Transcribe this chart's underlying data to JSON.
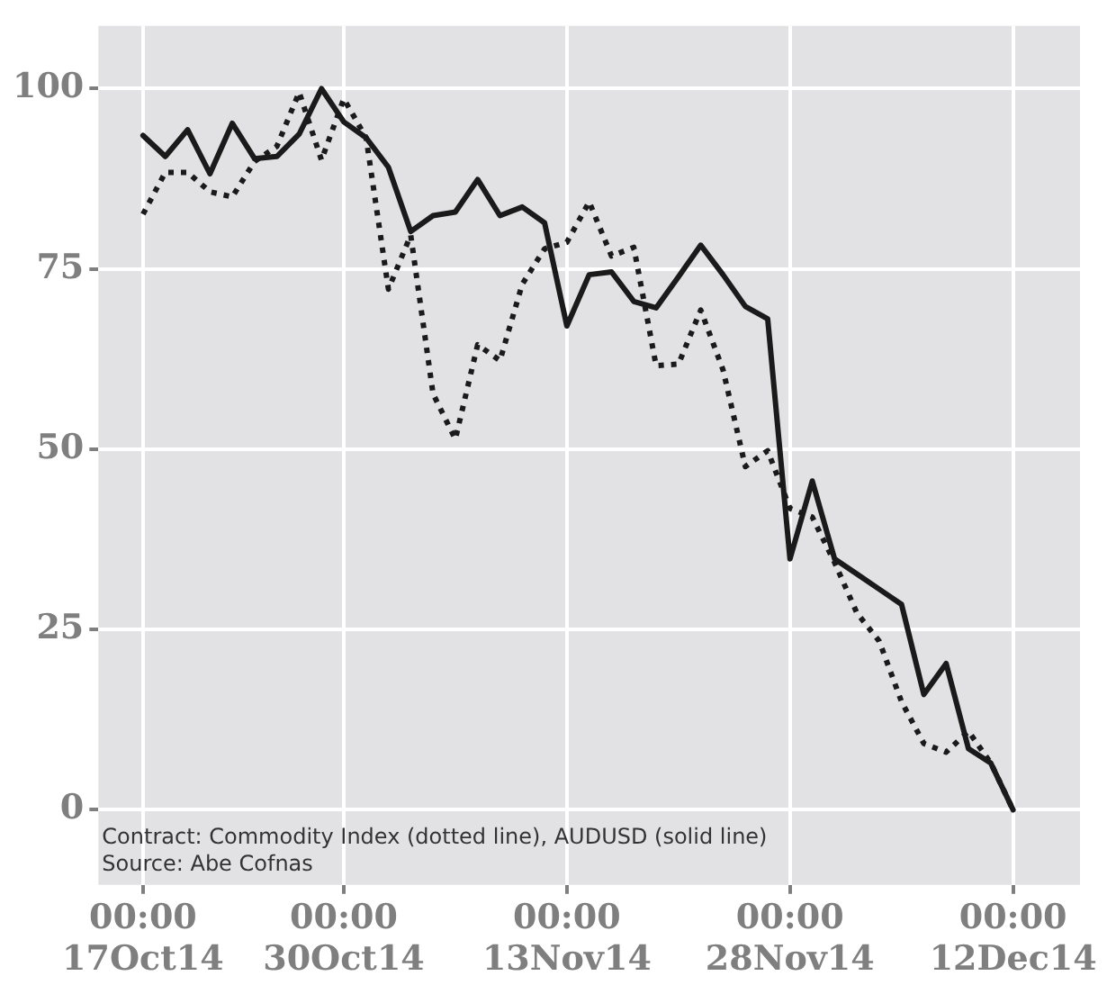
{
  "chart_data": {
    "type": "line",
    "categories": [
      "00:00\n17Oct14",
      null,
      null,
      null,
      null,
      null,
      null,
      null,
      null,
      "00:00\n30Oct14",
      null,
      null,
      null,
      null,
      null,
      null,
      null,
      null,
      null,
      "00:00\n13Nov14",
      null,
      null,
      null,
      null,
      null,
      null,
      null,
      null,
      null,
      "00:00\n28Nov14",
      null,
      null,
      null,
      null,
      null,
      null,
      null,
      null,
      null,
      "00:00\n12Dec14"
    ],
    "series": [
      {
        "color": "#1a1a1a",
        "line_style": "solid",
        "values": [
          93.5,
          90.6,
          94.3,
          88.2,
          95.2,
          90.3,
          90.6,
          93.7,
          100,
          95.4,
          93.2,
          89.1,
          80.2,
          82.4,
          82.9,
          87.4,
          82.4,
          83.6,
          81.4,
          67.1,
          74.2,
          74.6,
          70.5,
          69.6,
          73.9,
          78.3,
          74.2,
          69.8,
          68.1,
          34.8,
          45.6,
          34.8,
          32.7,
          30.6,
          28.5,
          16,
          20.3,
          8.5,
          6.5,
          0
        ]
      },
      {
        "color": "#1a1a1a",
        "line_style": "dotted",
        "values": [
          82.6,
          88.4,
          88.4,
          85.7,
          85,
          89.9,
          92,
          99.5,
          90.1,
          98.6,
          93.2,
          72.2,
          79.7,
          57.7,
          51.4,
          64.5,
          62.3,
          72.9,
          77.8,
          78.7,
          84.3,
          76.8,
          78,
          61.6,
          61.8,
          69.3,
          61,
          47.6,
          49.8,
          41.8,
          40.6,
          34.3,
          27.3,
          23.4,
          15,
          9.2,
          8,
          10.9,
          6.5,
          0
        ]
      }
    ],
    "ylim": [
      -10.4,
      108.7
    ],
    "yticks": [
      0,
      25,
      50,
      75,
      100
    ],
    "grid": true,
    "legend": false,
    "marker": "none",
    "annotations": [
      "Contract: Commodity Index (dotted line), AUDUSD (solid line)",
      "Source: Abe Cofnas"
    ]
  }
}
